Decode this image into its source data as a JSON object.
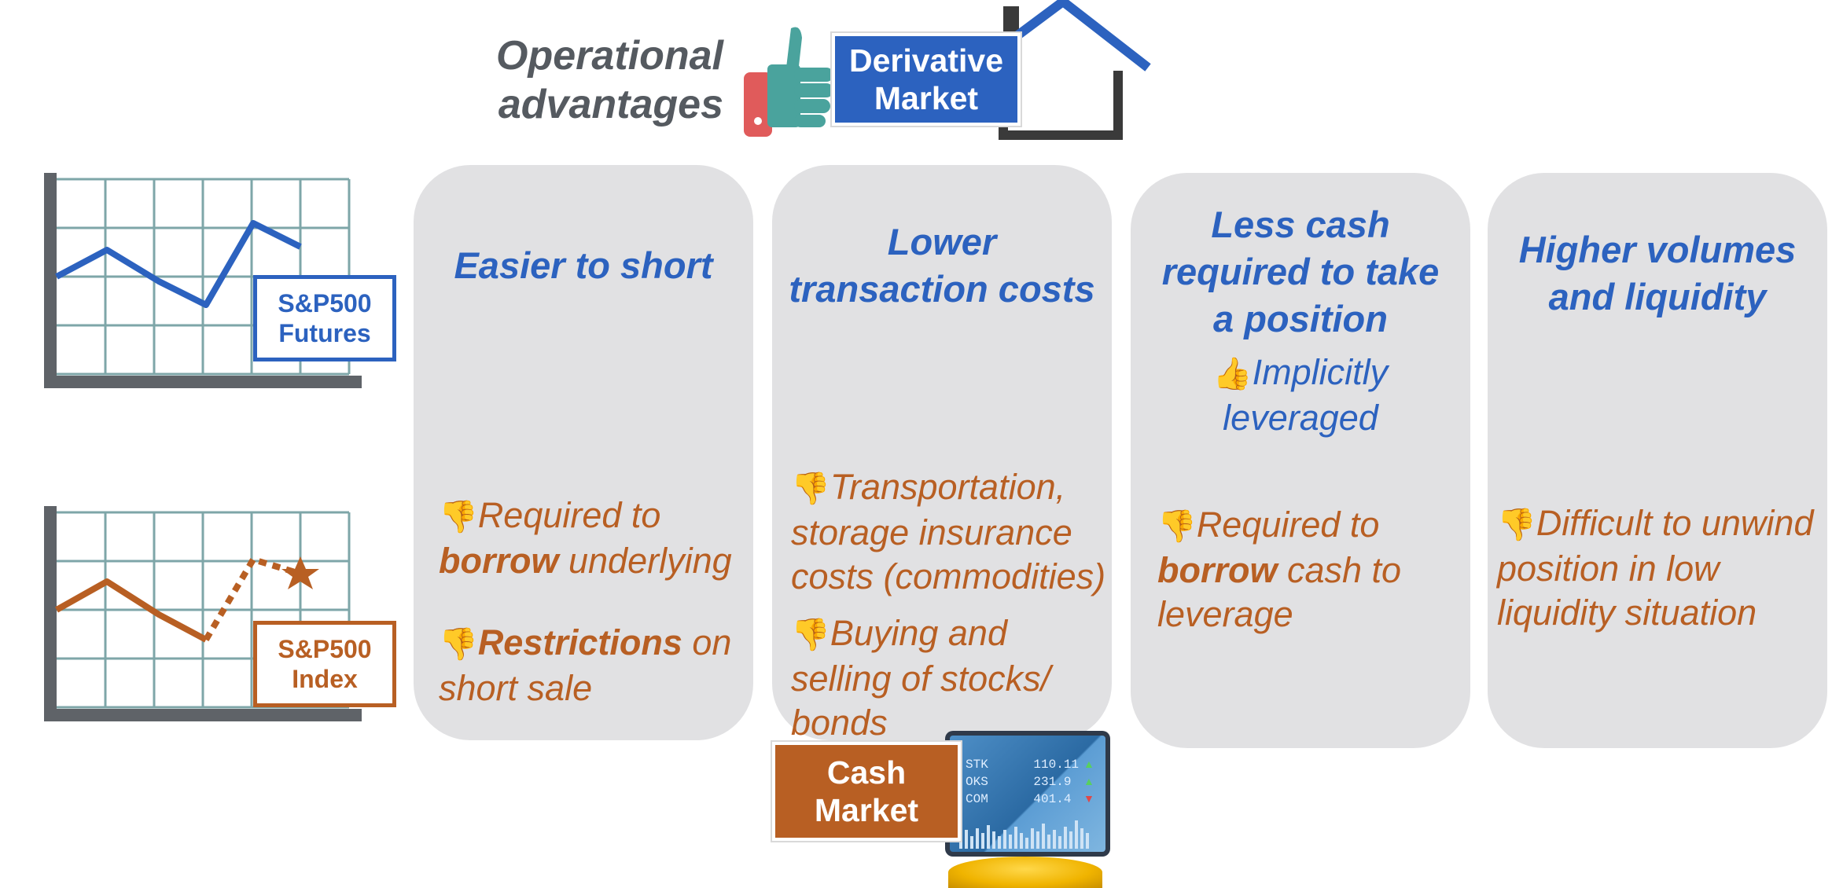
{
  "header": {
    "title_line1": "Operational",
    "title_line2": "advantages",
    "derivative_line1": "Derivative",
    "derivative_line2": "Market"
  },
  "cash_market": {
    "line1": "Cash",
    "line2": "Market"
  },
  "charts": {
    "futures": {
      "line1": "S&P500",
      "line2": "Futures"
    },
    "index": {
      "line1": "S&P500",
      "line2": "Index"
    }
  },
  "columns": [
    {
      "title_lines": [
        "Easier to short"
      ],
      "con1": {
        "pre": "Required to ",
        "bold": "borrow",
        "post": " underlying"
      },
      "con2": {
        "bold": "Restrictions",
        "post": " on short sale"
      }
    },
    {
      "title_lines": [
        "Lower",
        "transaction costs"
      ],
      "con1": {
        "line1": "Transportation,",
        "line2": "storage insurance",
        "line3": "costs (commodities)"
      },
      "con2": {
        "line1": "Buying and",
        "line2": "selling of stocks/",
        "line3": "bonds"
      }
    },
    {
      "title_lines": [
        "Less cash",
        "required to take",
        "a position"
      ],
      "pro": {
        "line1": "Implicitly",
        "line2": "leveraged"
      },
      "con1": {
        "pre": "Required to ",
        "bold": "borrow",
        "post": " cash to leverage"
      }
    },
    {
      "title_lines": [
        "Higher volumes",
        "and liquidity"
      ],
      "con1": {
        "line1": "Difficult to unwind",
        "line2": "position in low",
        "line3": "liquidity situation"
      }
    }
  ],
  "ticker": {
    "rows": [
      {
        "sym": "STK",
        "val": "110.11"
      },
      {
        "sym": "OKS",
        "val": "231.9"
      },
      {
        "sym": "COM",
        "val": "401.4"
      }
    ]
  },
  "colors": {
    "blue": "#2c62bf",
    "orange": "#b85f23",
    "panel": "#e1e1e3",
    "grid": "#7ea6a8",
    "axis": "#5f6368"
  },
  "icons": {
    "thumbs_down": "👎",
    "thumbs_up": "👍"
  }
}
